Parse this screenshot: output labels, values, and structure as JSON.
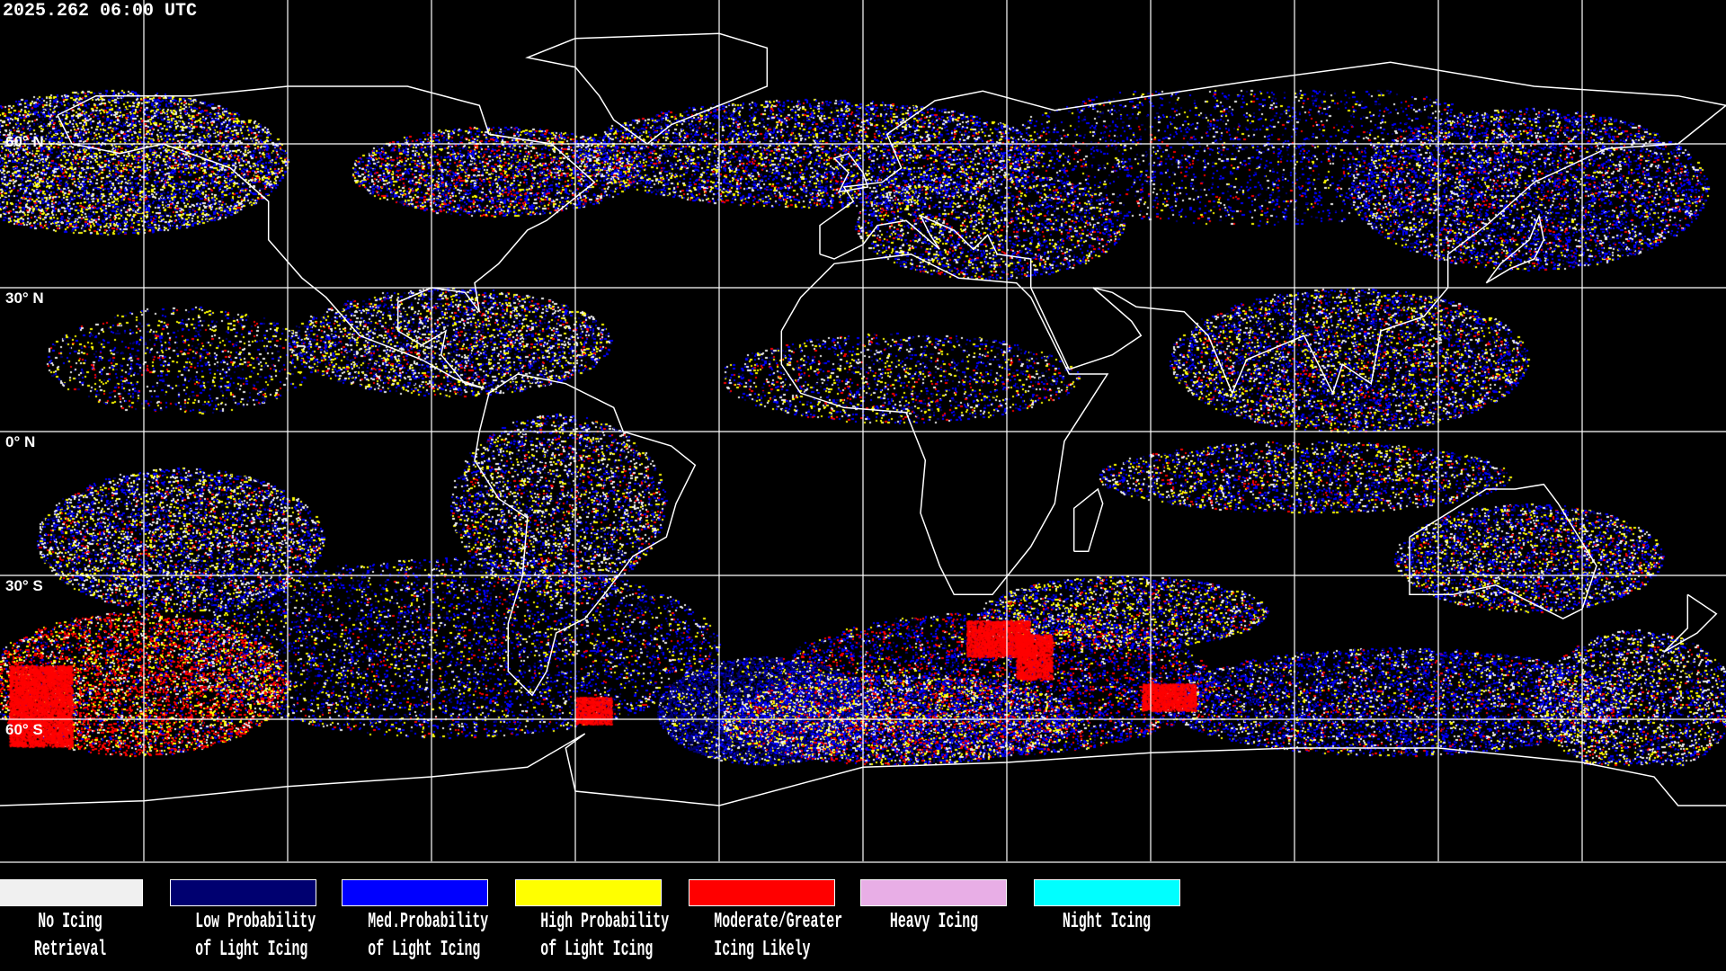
{
  "header": {
    "timestamp": "2025.262 06:00 UTC"
  },
  "map": {
    "latitude_labels": [
      "60° N",
      "30° N",
      "0° N",
      "30° S",
      "60° S"
    ],
    "projection": "equirectangular",
    "gridline_spacing_degrees": 30,
    "coastline_color": "#ffffff",
    "gridline_color": "#ffffff"
  },
  "legend": [
    {
      "line1": "No Icing",
      "line2": "Retrieval",
      "color": "#f0f0f0"
    },
    {
      "line1": "Low Probability",
      "line2": "of Light Icing",
      "color": "#000070"
    },
    {
      "line1": "Med.Probability",
      "line2": "of Light Icing",
      "color": "#0000ff"
    },
    {
      "line1": "High Probability",
      "line2": "of Light Icing",
      "color": "#ffff00"
    },
    {
      "line1": "Moderate/Greater",
      "line2": "Icing Likely",
      "color": "#ff0000"
    },
    {
      "line1": "Heavy Icing",
      "line2": "",
      "color": "#e8aee6"
    },
    {
      "line1": "Night Icing",
      "line2": "",
      "color": "#00ffff"
    }
  ]
}
